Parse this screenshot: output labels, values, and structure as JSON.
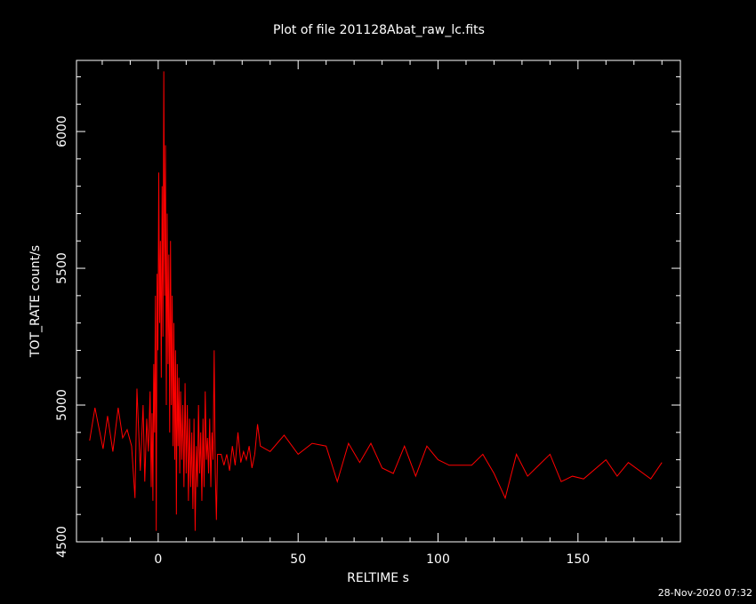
{
  "chart_data": {
    "type": "line",
    "title": "Plot of file 201128Abat_raw_lc.fits",
    "xlabel": "RELTIME  s",
    "ylabel": "TOT_RATE  count/s",
    "timestamp": "28-Nov-2020 07:32",
    "xlim": [
      -29.2,
      186.6
    ],
    "ylim": [
      4500,
      6260
    ],
    "xticks": [
      0,
      50,
      100,
      150
    ],
    "yticks": [
      4500,
      5000,
      5500,
      6000
    ],
    "xminorticks": [
      -20,
      -10,
      10,
      20,
      30,
      40,
      60,
      70,
      80,
      90,
      110,
      120,
      130,
      140,
      160,
      170,
      180
    ],
    "yminorticks": [
      4600,
      4700,
      4800,
      4900,
      5100,
      5200,
      5300,
      5400,
      5600,
      5700,
      5800,
      5900,
      6100,
      6200
    ],
    "series": [
      {
        "name": "TOT_RATE",
        "color": "#ff0000",
        "x": [
          -24.5,
          -22.6,
          -19.7,
          -18.1,
          -16.2,
          -14.3,
          -12.7,
          -11.1,
          -9.5,
          -8.3,
          -7.6,
          -6.4,
          -5.4,
          -4.8,
          -4.1,
          -3.5,
          -2.9,
          -2.5,
          -2.2,
          -1.9,
          -1.6,
          -1.3,
          -1.0,
          -0.7,
          -0.4,
          -0.1,
          0.2,
          0.5,
          0.8,
          1.1,
          1.4,
          1.7,
          2.0,
          2.3,
          2.6,
          2.9,
          3.2,
          3.5,
          3.8,
          4.1,
          4.4,
          4.7,
          5.0,
          5.3,
          5.6,
          5.9,
          6.2,
          6.5,
          6.8,
          7.1,
          7.4,
          7.7,
          8.0,
          8.4,
          8.8,
          9.2,
          9.6,
          10.0,
          10.4,
          10.8,
          11.2,
          11.6,
          12.0,
          12.4,
          12.8,
          13.2,
          13.6,
          14.0,
          14.4,
          14.8,
          15.2,
          15.6,
          16.0,
          16.4,
          16.8,
          17.2,
          17.6,
          18.0,
          18.4,
          18.8,
          19.2,
          19.6,
          20.0,
          20.4,
          20.8,
          21.2,
          22.5,
          23.5,
          24.5,
          25.5,
          26.5,
          27.5,
          28.5,
          29.5,
          30.5,
          31.5,
          32.5,
          33.5,
          34.5,
          35.5,
          36.5,
          40,
          45,
          50,
          55,
          60,
          64,
          68,
          72,
          76,
          80,
          84,
          88,
          92,
          96,
          100,
          104,
          108,
          112,
          116,
          120,
          124,
          128,
          132,
          136,
          140,
          144,
          148,
          152,
          160,
          164,
          168,
          176,
          180
        ],
        "values": [
          4870,
          4990,
          4840,
          4960,
          4830,
          4990,
          4880,
          4910,
          4850,
          4660,
          5060,
          4760,
          5000,
          4720,
          4950,
          4830,
          5050,
          4700,
          4970,
          4650,
          5150,
          4900,
          5400,
          4540,
          5480,
          5200,
          5850,
          5300,
          5600,
          5100,
          5800,
          5250,
          6220,
          5400,
          5950,
          5000,
          5700,
          5150,
          5550,
          4900,
          5600,
          5000,
          5400,
          4850,
          5300,
          4800,
          5200,
          4600,
          5150,
          4850,
          5100,
          4750,
          5050,
          4800,
          5000,
          4700,
          5080,
          4750,
          5000,
          4650,
          4950,
          4700,
          4900,
          4620,
          4950,
          4540,
          4850,
          4700,
          5000,
          4750,
          4900,
          4650,
          4950,
          4700,
          5050,
          4800,
          4880,
          4750,
          4950,
          4700,
          4900,
          4800,
          5200,
          4750,
          4580,
          4820,
          4820,
          4780,
          4820,
          4760,
          4850,
          4780,
          4900,
          4790,
          4830,
          4800,
          4850,
          4770,
          4820,
          4930,
          4850,
          4830,
          4890,
          4820,
          4860,
          4850,
          4720,
          4860,
          4790,
          4860,
          4770,
          4750,
          4850,
          4740,
          4850,
          4800,
          4780,
          4780,
          4780,
          4820,
          4750,
          4660,
          4820,
          4740,
          4780,
          4820,
          4720,
          4740,
          4730,
          4800,
          4740,
          4790,
          4730,
          4790
        ]
      }
    ]
  }
}
